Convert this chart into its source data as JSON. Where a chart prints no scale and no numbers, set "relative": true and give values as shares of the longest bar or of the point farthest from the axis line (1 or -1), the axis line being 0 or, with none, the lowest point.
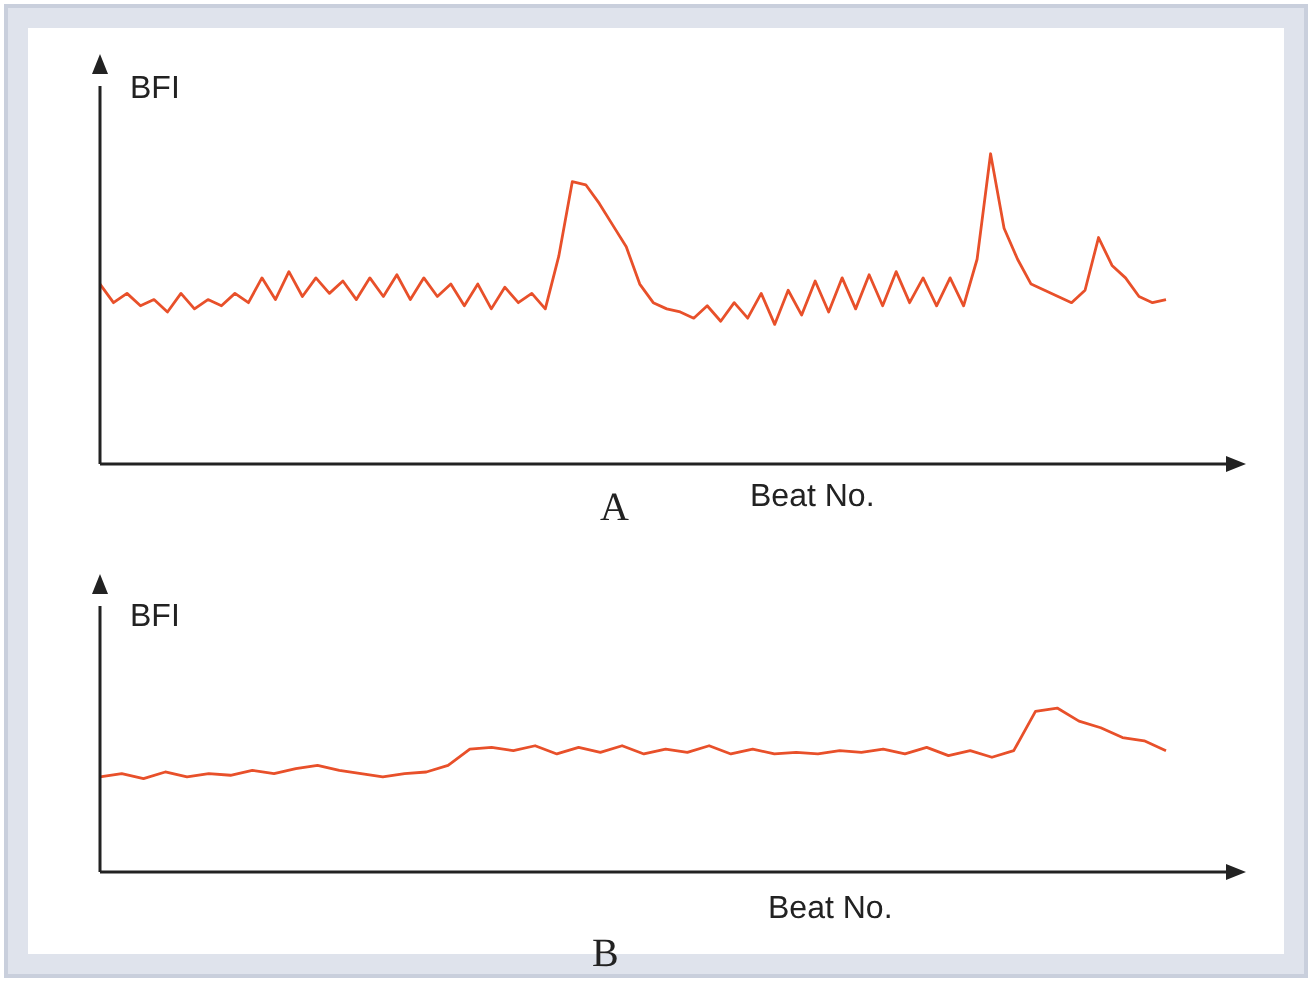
{
  "chart_data": [
    {
      "type": "line",
      "title": "A",
      "xlabel": "Beat No.",
      "ylabel": "BFI",
      "relative": true,
      "categories": [
        null,
        null,
        null,
        null,
        null,
        null,
        null,
        null,
        null,
        null,
        null,
        null,
        null,
        null,
        null,
        null,
        null,
        null,
        null,
        null,
        null,
        null,
        null,
        null,
        null,
        null,
        null,
        null,
        null,
        null,
        null,
        null,
        null,
        null,
        null,
        null,
        null,
        null,
        null,
        null,
        null,
        null,
        null,
        null,
        null,
        null,
        null,
        null,
        null,
        null,
        null,
        null,
        null,
        null,
        null,
        null,
        null,
        null,
        null,
        null,
        null,
        null,
        null,
        null,
        null,
        null,
        null,
        null,
        null,
        null,
        null,
        null,
        null,
        null,
        null,
        null,
        null,
        null,
        null,
        null
      ],
      "series": [
        {
          "color": "#e8502a",
          "values": [
            0.58,
            0.52,
            0.55,
            0.51,
            0.53,
            0.49,
            0.55,
            0.5,
            0.53,
            0.51,
            0.55,
            0.52,
            0.6,
            0.53,
            0.62,
            0.54,
            0.6,
            0.55,
            0.59,
            0.53,
            0.6,
            0.54,
            0.61,
            0.53,
            0.6,
            0.54,
            0.58,
            0.51,
            0.58,
            0.5,
            0.57,
            0.52,
            0.55,
            0.5,
            0.67,
            0.91,
            0.9,
            0.84,
            0.77,
            0.7,
            0.58,
            0.52,
            0.5,
            0.49,
            0.47,
            0.51,
            0.46,
            0.52,
            0.47,
            0.55,
            0.45,
            0.56,
            0.48,
            0.59,
            0.49,
            0.6,
            0.5,
            0.61,
            0.51,
            0.62,
            0.52,
            0.6,
            0.51,
            0.6,
            0.51,
            0.66,
            1.0,
            0.76,
            0.66,
            0.58,
            0.56,
            0.54,
            0.52,
            0.56,
            0.73,
            0.64,
            0.6,
            0.54,
            0.52,
            0.53
          ]
        }
      ]
    },
    {
      "type": "line",
      "title": "B",
      "xlabel": "Beat No.",
      "ylabel": "BFI",
      "relative": true,
      "categories": [
        null,
        null,
        null,
        null,
        null,
        null,
        null,
        null,
        null,
        null,
        null,
        null,
        null,
        null,
        null,
        null,
        null,
        null,
        null,
        null,
        null,
        null,
        null,
        null,
        null,
        null,
        null,
        null,
        null,
        null,
        null,
        null,
        null,
        null,
        null,
        null,
        null,
        null,
        null,
        null,
        null,
        null,
        null,
        null,
        null,
        null,
        null,
        null,
        null,
        null
      ],
      "series": [
        {
          "color": "#e8502a",
          "values": [
            0.58,
            0.6,
            0.57,
            0.61,
            0.58,
            0.6,
            0.59,
            0.62,
            0.6,
            0.63,
            0.65,
            0.62,
            0.6,
            0.58,
            0.6,
            0.61,
            0.65,
            0.75,
            0.76,
            0.74,
            0.77,
            0.72,
            0.76,
            0.73,
            0.77,
            0.72,
            0.75,
            0.73,
            0.77,
            0.72,
            0.75,
            0.72,
            0.73,
            0.72,
            0.74,
            0.73,
            0.75,
            0.72,
            0.76,
            0.71,
            0.74,
            0.7,
            0.74,
            0.98,
            1.0,
            0.92,
            0.88,
            0.82,
            0.8,
            0.74
          ]
        }
      ]
    }
  ]
}
